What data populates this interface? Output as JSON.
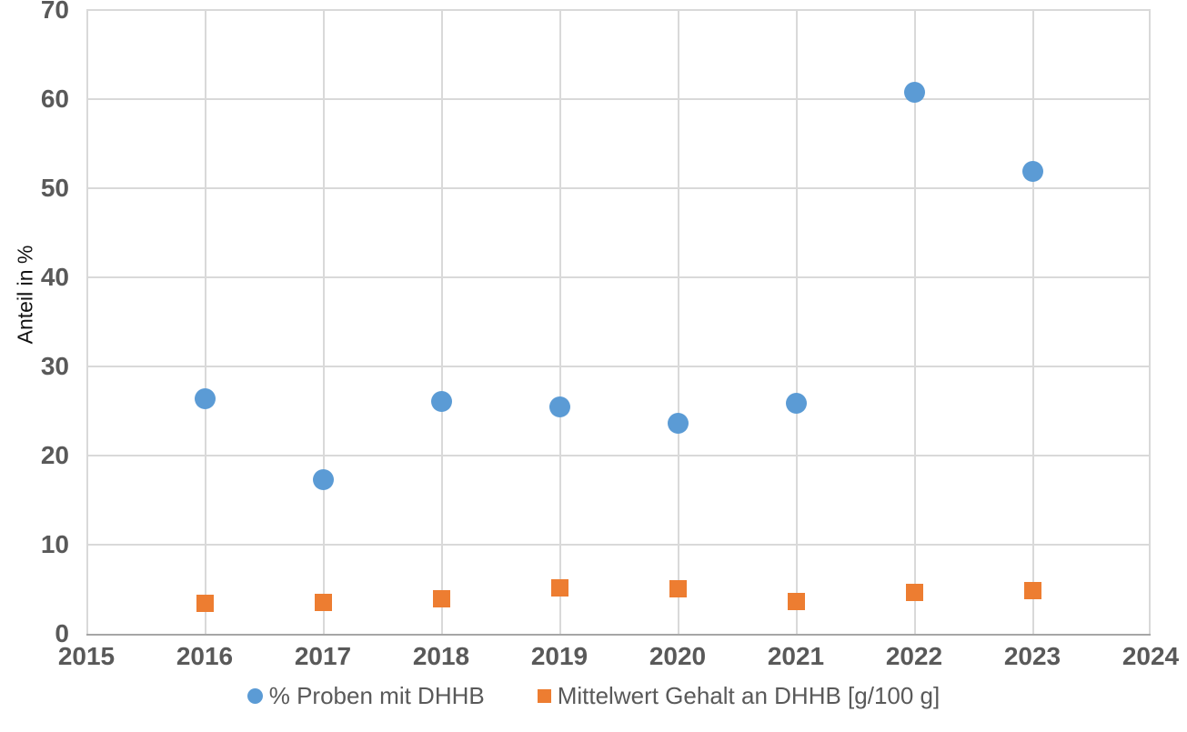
{
  "chart_data": {
    "type": "scatter",
    "title": "",
    "xlabel": "",
    "ylabel": "Anteil in %",
    "xlim": [
      2015,
      2024
    ],
    "ylim": [
      0,
      70
    ],
    "xticks": [
      2015,
      2016,
      2017,
      2018,
      2019,
      2020,
      2021,
      2022,
      2023,
      2024
    ],
    "yticks": [
      0,
      10,
      20,
      30,
      40,
      50,
      60,
      70
    ],
    "grid": true,
    "legend_position": "bottom",
    "x": [
      2016,
      2017,
      2018,
      2019,
      2020,
      2021,
      2022,
      2023
    ],
    "series": [
      {
        "name": "% Proben mit DHHB",
        "marker": "circle",
        "color": "#5B9BD5",
        "values": [
          26.4,
          17.3,
          26.1,
          25.5,
          23.6,
          25.9,
          60.8,
          51.9
        ]
      },
      {
        "name": "Mittelwert Gehalt an DHHB [g/100 g]",
        "marker": "square",
        "color": "#ED7D31",
        "values": [
          3.4,
          3.5,
          3.9,
          5.2,
          5.1,
          3.6,
          4.6,
          4.8
        ]
      }
    ],
    "colors": {
      "background": "#FFFFFF",
      "gridline": "#D9D9D9",
      "axis_line": "#A6A6A6",
      "tick_label": "#595959",
      "axis_title": "#111111",
      "legend_text": "#595959"
    }
  }
}
